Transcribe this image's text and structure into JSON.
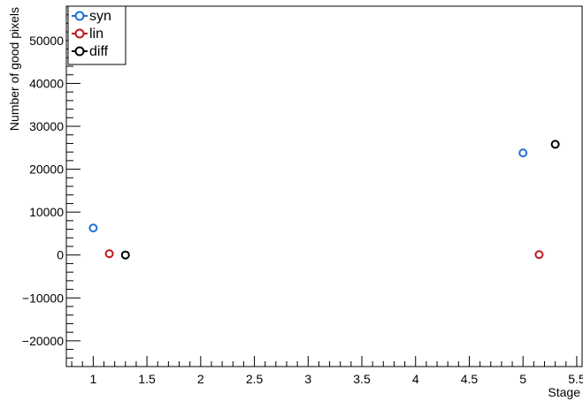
{
  "chart_data": {
    "type": "scatter",
    "title": "",
    "xlabel": "Stage",
    "ylabel": "Number of good pixels",
    "xlim": [
      0.75,
      5.55
    ],
    "ylim": [
      -26000,
      58000
    ],
    "x_ticks": [
      1,
      1.5,
      2,
      2.5,
      3,
      3.5,
      4,
      4.5,
      5,
      5.5
    ],
    "x_tick_labels": [
      "1",
      "1.5",
      "2",
      "2.5",
      "3",
      "3.5",
      "4",
      "4.5",
      "5",
      "5.5"
    ],
    "y_ticks": [
      -20000,
      -10000,
      0,
      10000,
      20000,
      30000,
      40000,
      50000
    ],
    "y_tick_labels": [
      "−20000",
      "−10000",
      "0",
      "10000",
      "20000",
      "30000",
      "40000",
      "50000"
    ],
    "grid": false,
    "legend_position": "top-left",
    "series": [
      {
        "name": "syn",
        "color": "#1f6fd6",
        "points": [
          {
            "x": 1.0,
            "y": 6300
          },
          {
            "x": 5.0,
            "y": 23800
          }
        ]
      },
      {
        "name": "lin",
        "color": "#c0161c",
        "points": [
          {
            "x": 1.15,
            "y": 300
          },
          {
            "x": 5.15,
            "y": 100
          }
        ]
      },
      {
        "name": "diff",
        "color": "#000000",
        "points": [
          {
            "x": 1.3,
            "y": 0
          },
          {
            "x": 5.3,
            "y": 25800
          }
        ]
      }
    ]
  }
}
